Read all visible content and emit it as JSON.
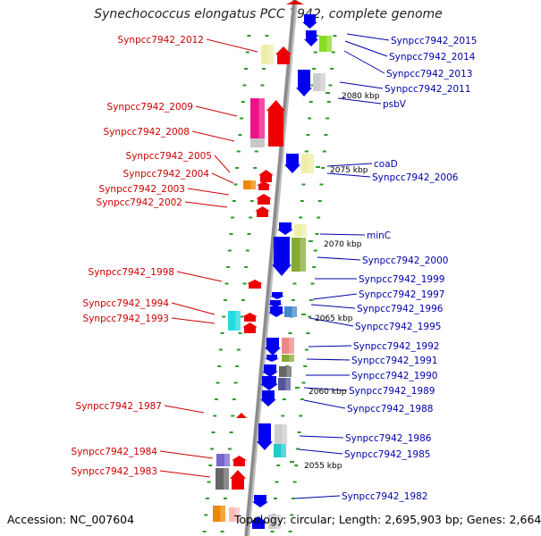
{
  "title": "Synechococcus elongatus PCC 7942, complete genome",
  "accession": "Accession: NC_007604",
  "summary": "Topology: circular; Length: 2,695,903 bp; Genes: 2,664",
  "colors": {
    "left_label": "#cc0000",
    "right_label": "#0000aa",
    "backbone": "#8c8c8c",
    "dots": "#2a9a2a"
  },
  "ticks": [
    "2080 kbp",
    "2075 kbp",
    "2070 kbp",
    "2065 kbp",
    "2060 kbp",
    "2055 kbp"
  ],
  "left_genes": [
    "Synpcc7942_2012",
    "Synpcc7942_2009",
    "Synpcc7942_2008",
    "Synpcc7942_2005",
    "Synpcc7942_2004",
    "Synpcc7942_2003",
    "Synpcc7942_2002",
    "Synpcc7942_1998",
    "Synpcc7942_1994",
    "Synpcc7942_1993",
    "Synpcc7942_1987",
    "Synpcc7942_1984",
    "Synpcc7942_1983"
  ],
  "right_genes": [
    "Synpcc7942_2015",
    "Synpcc7942_2014",
    "Synpcc7942_2013",
    "Synpcc7942_2011",
    "psbV",
    "coaD",
    "Synpcc7942_2006",
    "minC",
    "Synpcc7942_2000",
    "Synpcc7942_1999",
    "Synpcc7942_1997",
    "Synpcc7942_1996",
    "Synpcc7942_1995",
    "Synpcc7942_1992",
    "Synpcc7942_1991",
    "Synpcc7942_1990",
    "Synpcc7942_1989",
    "Synpcc7942_1988",
    "Synpcc7942_1986",
    "Synpcc7942_1985",
    "Synpcc7942_1982"
  ]
}
